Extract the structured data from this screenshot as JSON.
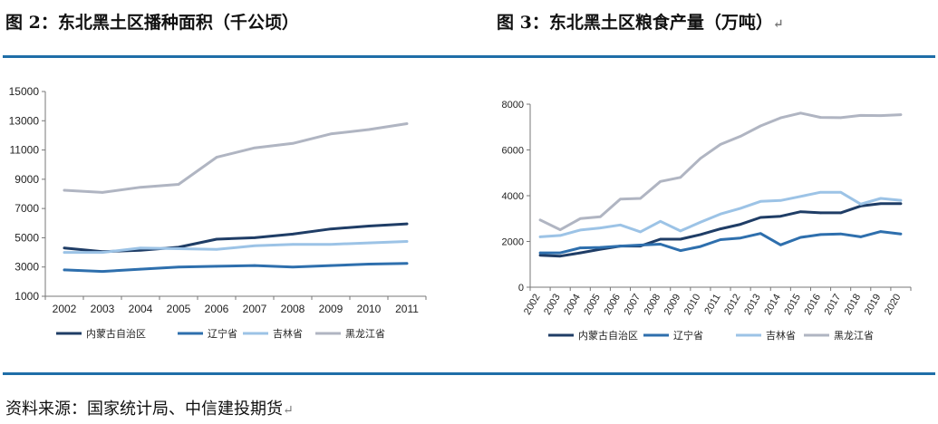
{
  "figures": {
    "left_title": "图 2：东北黑土区播种面积（千公顷）",
    "right_title": "图 3：东北黑土区粮食产量（万吨）",
    "right_return_mark": "↵"
  },
  "source_text": "资料来源：国家统计局、中信建投期货",
  "source_return_mark": "↵",
  "colors": {
    "rule": "#1f6ea8",
    "series": [
      "#1f3d66",
      "#2e6fad",
      "#9cc3e6",
      "#b0b5c2"
    ]
  },
  "chart_data": [
    {
      "type": "line",
      "title": "东北黑土区播种面积（千公顷）",
      "x": [
        "2002",
        "2003",
        "2004",
        "2005",
        "2006",
        "2007",
        "2008",
        "2009",
        "2010",
        "2011"
      ],
      "ylim": [
        1000,
        15000
      ],
      "yticks": [
        1000,
        3000,
        5000,
        7000,
        9000,
        11000,
        13000,
        15000
      ],
      "grid": false,
      "legend_position": "bottom",
      "series": [
        {
          "name": "内蒙古自治区",
          "values": [
            4300,
            4050,
            4150,
            4350,
            4900,
            5000,
            5250,
            5600,
            5800,
            5950
          ]
        },
        {
          "name": "辽宁省",
          "values": [
            2800,
            2700,
            2850,
            3000,
            3050,
            3100,
            3000,
            3100,
            3200,
            3250
          ]
        },
        {
          "name": "吉林省",
          "values": [
            4000,
            4000,
            4300,
            4250,
            4200,
            4450,
            4550,
            4550,
            4650,
            4750
          ]
        },
        {
          "name": "黑龙江省",
          "values": [
            8250,
            8100,
            8450,
            8650,
            10500,
            11150,
            11450,
            12100,
            12400,
            12800
          ]
        }
      ]
    },
    {
      "type": "line",
      "title": "东北黑土区粮食产量（万吨）",
      "x": [
        "2002",
        "2003",
        "2004",
        "2005",
        "2006",
        "2007",
        "2008",
        "2009",
        "2010",
        "2011",
        "2012",
        "2013",
        "2014",
        "2015",
        "2016",
        "2017",
        "2018",
        "2019",
        "2020"
      ],
      "ylim": [
        0,
        8000
      ],
      "yticks": [
        0,
        2000,
        4000,
        6000,
        8000
      ],
      "grid": false,
      "legend_position": "bottom",
      "series": [
        {
          "name": "内蒙古自治区",
          "values": [
            1400,
            1360,
            1500,
            1660,
            1800,
            1800,
            2100,
            2100,
            2300,
            2550,
            2750,
            3050,
            3100,
            3300,
            3250,
            3250,
            3550,
            3650,
            3650
          ]
        },
        {
          "name": "辽宁省",
          "values": [
            1500,
            1500,
            1720,
            1740,
            1800,
            1840,
            1880,
            1600,
            1780,
            2080,
            2150,
            2350,
            1850,
            2180,
            2300,
            2330,
            2200,
            2430,
            2330
          ]
        },
        {
          "name": "吉林省",
          "values": [
            2200,
            2260,
            2500,
            2590,
            2720,
            2420,
            2880,
            2460,
            2840,
            3200,
            3450,
            3750,
            3790,
            3970,
            4150,
            4150,
            3630,
            3880,
            3800
          ]
        },
        {
          "name": "黑龙江省",
          "values": [
            2940,
            2510,
            3000,
            3080,
            3850,
            3880,
            4620,
            4800,
            5630,
            6240,
            6600,
            7050,
            7400,
            7610,
            7420,
            7410,
            7510,
            7500,
            7540
          ]
        }
      ]
    }
  ]
}
